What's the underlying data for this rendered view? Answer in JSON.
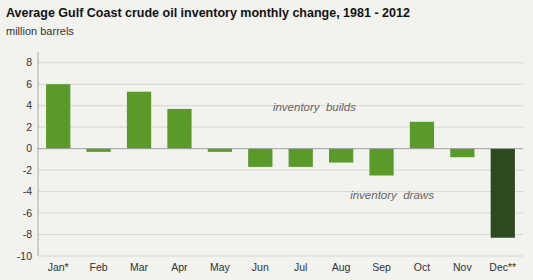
{
  "chart_data": {
    "type": "bar",
    "title": "Average Gulf Coast crude oil inventory monthly change, 1981 - 2012",
    "subtitle": "million barrels",
    "categories": [
      "Jan*",
      "Feb",
      "Mar",
      "Apr",
      "May",
      "Jun",
      "Jul",
      "Aug",
      "Sep",
      "Oct",
      "Nov",
      "Dec**"
    ],
    "values": [
      6.0,
      -0.3,
      5.3,
      3.7,
      -0.3,
      -1.7,
      -1.7,
      -1.3,
      -2.5,
      2.5,
      -0.8,
      -8.3
    ],
    "colors": [
      "#5a9a2a",
      "#5a9a2a",
      "#5a9a2a",
      "#5a9a2a",
      "#5a9a2a",
      "#5a9a2a",
      "#5a9a2a",
      "#5a9a2a",
      "#5a9a2a",
      "#5a9a2a",
      "#5a9a2a",
      "#2d4a1e"
    ],
    "ylim": [
      -10,
      9
    ],
    "yticks": [
      -10,
      -8,
      -6,
      -4,
      -2,
      0,
      2,
      4,
      6,
      8
    ],
    "grid": true,
    "annotations": [
      "inventory  builds",
      "inventory  draws"
    ]
  }
}
